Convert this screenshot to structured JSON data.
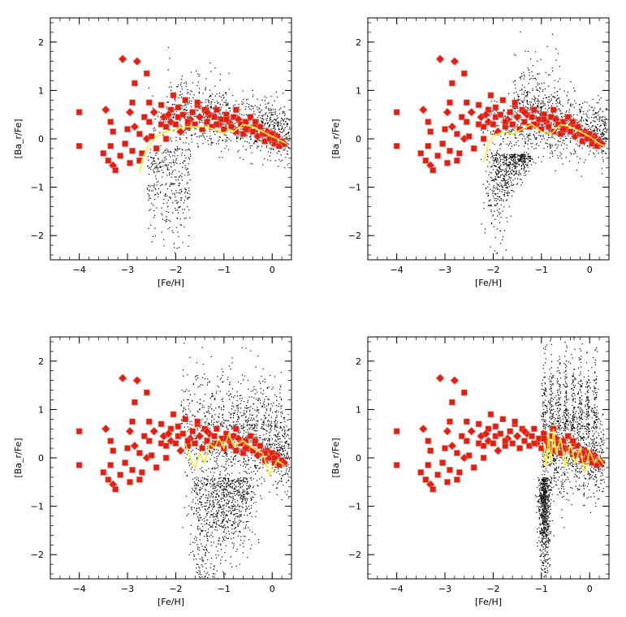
{
  "colors": {
    "background": "#ffffff",
    "model_cloud": "#000000",
    "observations": "#dd2211",
    "observation_edge": "#ff7777",
    "mean_curve": "#ffee33",
    "axes": "#000000"
  },
  "chart_data": [
    {
      "type": "scatter",
      "panel": 1,
      "xlabel": "[Fe/H]",
      "ylabel": "[Ba_r/Fe]",
      "xlim": [
        -4.6,
        0.4
      ],
      "ylim": [
        -2.5,
        2.5
      ],
      "xticks": [
        -4,
        -3,
        -2,
        -1,
        0
      ],
      "yticks": [
        -2,
        -1,
        0,
        1,
        2
      ],
      "grid": false,
      "cloud_shape": "concentrated plume rising from about [Fe/H]=-2.5, narrow low tail near -2.5 to -2, high density between -1.5 and 0.3",
      "mean_curve": {
        "x": [
          -2.75,
          -2.7,
          -2.6,
          -2.4,
          -2.2,
          -2.0,
          -1.8,
          -1.6,
          -1.4,
          -1.2,
          -1.0,
          -0.9,
          -0.8,
          -0.6,
          -0.4,
          -0.2,
          0.0,
          0.2,
          0.3
        ],
        "y": [
          -0.7,
          -0.45,
          -0.2,
          0.05,
          0.15,
          0.2,
          0.25,
          0.25,
          0.25,
          0.2,
          0.1,
          0.2,
          0.15,
          0.3,
          0.25,
          0.15,
          0.05,
          -0.05,
          -0.1
        ]
      }
    },
    {
      "type": "scatter",
      "panel": 2,
      "xlabel": "[Fe/H]",
      "ylabel": "[Ba_r/Fe]",
      "xlim": [
        -4.6,
        0.4
      ],
      "ylim": [
        -2.5,
        2.5
      ],
      "xticks": [
        -4,
        -3,
        -2,
        -1,
        0
      ],
      "yticks": [
        -2,
        -1,
        0,
        1,
        2
      ],
      "grid": false,
      "cloud_shape": "funnel-shaped cloud with deep low tail near [Fe/H]=-2 to -1.5 and upper spike near -1.2",
      "mean_curve": {
        "x": [
          -2.2,
          -2.1,
          -2.0,
          -1.8,
          -1.6,
          -1.4,
          -1.2,
          -1.0,
          -0.8,
          -0.6,
          -0.4,
          -0.2,
          0.0,
          0.2,
          0.3
        ],
        "y": [
          -0.5,
          -0.1,
          0.05,
          0.15,
          0.1,
          0.2,
          0.3,
          0.15,
          0.1,
          0.3,
          0.25,
          0.15,
          0.05,
          -0.1,
          -0.15
        ]
      }
    },
    {
      "type": "scatter",
      "panel": 3,
      "xlabel": "[Fe/H]",
      "ylabel": "[Ba_r/Fe]",
      "xlim": [
        -4.6,
        0.4
      ],
      "ylim": [
        -2.5,
        2.5
      ],
      "xticks": [
        -4,
        -3,
        -2,
        -1,
        0
      ],
      "yticks": [
        -2,
        -1,
        0,
        1,
        2
      ],
      "grid": false,
      "cloud_shape": "broad cloud starting near [Fe/H]=-1.8, deep low plume toward -2.5, ragged upper edge",
      "mean_curve": {
        "x": [
          -1.8,
          -1.7,
          -1.6,
          -1.5,
          -1.4,
          -1.3,
          -1.2,
          -1.1,
          -1.0,
          -0.9,
          -0.8,
          -0.6,
          -0.4,
          -0.2,
          -0.05,
          0.1,
          0.25
        ],
        "y": [
          0.3,
          0.0,
          -0.2,
          0.1,
          -0.1,
          0.3,
          0.2,
          0.4,
          0.2,
          0.5,
          0.25,
          0.35,
          0.2,
          0.1,
          -0.35,
          -0.05,
          -0.15
        ]
      }
    },
    {
      "type": "scatter",
      "panel": 4,
      "xlabel": "[Fe/H]",
      "ylabel": "[Ba_r/Fe]",
      "xlim": [
        -4.6,
        0.4
      ],
      "ylim": [
        -2.5,
        2.5
      ],
      "xticks": [
        -4,
        -3,
        -2,
        -1,
        0
      ],
      "yticks": [
        -2,
        -1,
        0,
        1,
        2
      ],
      "grid": false,
      "cloud_shape": "cloud beginning abruptly at [Fe/H]=-1, dense low column near -0.9, narrow vertical spikes up to about 2.2",
      "mean_curve": {
        "x": [
          -0.95,
          -0.9,
          -0.85,
          -0.8,
          -0.75,
          -0.7,
          -0.6,
          -0.5,
          -0.4,
          -0.3,
          -0.2,
          -0.1,
          0.0,
          0.1,
          0.2,
          0.3
        ],
        "y": [
          0.3,
          -0.2,
          0.5,
          -0.1,
          0.6,
          0.1,
          0.4,
          -0.2,
          0.3,
          -0.1,
          0.2,
          -0.3,
          0.15,
          -0.1,
          0.0,
          -0.15
        ]
      }
    }
  ],
  "observations": {
    "x": [
      -4.0,
      -4.0,
      -3.5,
      -3.45,
      -3.4,
      -3.35,
      -3.35,
      -3.3,
      -3.3,
      -3.25,
      -3.15,
      -3.1,
      -3.05,
      -3.0,
      -2.95,
      -2.95,
      -2.9,
      -2.9,
      -2.85,
      -2.8,
      -2.75,
      -2.7,
      -2.65,
      -2.6,
      -2.6,
      -2.55,
      -2.5,
      -2.45,
      -2.4,
      -2.3,
      -2.3,
      -2.25,
      -2.2,
      -2.2,
      -2.1,
      -2.1,
      -2.05,
      -2.0,
      -1.95,
      -1.9,
      -1.85,
      -1.8,
      -1.75,
      -1.7,
      -1.65,
      -1.6,
      -1.55,
      -1.5,
      -1.45,
      -1.4,
      -1.35,
      -1.3,
      -1.25,
      -1.2,
      -1.15,
      -1.1,
      -1.05,
      -1.0,
      -0.95,
      -0.9,
      -0.85,
      -0.8,
      -0.75,
      -0.7,
      -0.65,
      -0.6,
      -0.55,
      -0.5,
      -0.45,
      -0.4,
      -0.35,
      -0.3,
      -0.25,
      -0.2,
      -0.15,
      -0.1,
      -0.05,
      0.0,
      0.05,
      0.1,
      0.15,
      0.2,
      -3.05,
      -2.85,
      -2.75,
      -2.55,
      -2.4,
      -2.15,
      -1.95,
      -1.75,
      -1.55,
      -1.35,
      -1.15,
      -0.95,
      -0.75,
      -0.55,
      -0.35,
      -0.15,
      0.05,
      0.25
    ],
    "y": [
      0.55,
      -0.15,
      -0.3,
      0.6,
      -0.45,
      -0.15,
      0.35,
      -0.55,
      0.15,
      -0.65,
      -0.35,
      1.65,
      -0.1,
      0.2,
      -0.5,
      0.55,
      0.75,
      -0.25,
      1.15,
      1.6,
      0.1,
      -0.3,
      0.45,
      0.0,
      1.35,
      0.35,
      0.05,
      0.55,
      -0.2,
      0.7,
      0.3,
      0.45,
      0.25,
      0.0,
      0.6,
      0.35,
      0.9,
      0.3,
      0.45,
      0.15,
      0.5,
      0.8,
      0.25,
      0.4,
      0.55,
      0.3,
      0.7,
      0.45,
      0.2,
      0.6,
      0.35,
      0.5,
      0.25,
      0.45,
      0.6,
      0.3,
      0.4,
      0.2,
      0.5,
      0.35,
      0.25,
      0.45,
      0.15,
      0.4,
      0.3,
      0.1,
      0.35,
      0.2,
      0.45,
      0.15,
      0.3,
      0.05,
      0.25,
      0.1,
      -0.05,
      0.15,
      0.0,
      0.1,
      -0.1,
      0.05,
      -0.15,
      -0.05,
      -0.1,
      0.25,
      -0.45,
      0.75,
      -0.2,
      0.5,
      0.65,
      0.35,
      0.75,
      0.55,
      0.3,
      0.4,
      0.6,
      0.2,
      0.35,
      0.1,
      0.0,
      -0.1
    ]
  }
}
